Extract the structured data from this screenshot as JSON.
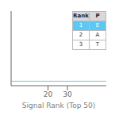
{
  "chart_data": {
    "type": "line",
    "xlabel": "Signal Rank (Top 50)",
    "x": [
      1,
      50
    ],
    "values": [
      3,
      3
    ],
    "color": "#7ec8e3",
    "xlim": [
      1,
      50
    ],
    "ylim": [
      0,
      50
    ],
    "xticks": [
      20,
      30
    ],
    "tick_labels": "x",
    "table": {
      "columns": [
        "Rank",
        "P"
      ],
      "rows": [
        [
          "1",
          "E"
        ],
        [
          "2",
          "A"
        ],
        [
          "3",
          "T"
        ]
      ],
      "highlight_row": 0,
      "highlight_color": "#5bc8f5",
      "header_color": "#d8d8d8"
    }
  }
}
